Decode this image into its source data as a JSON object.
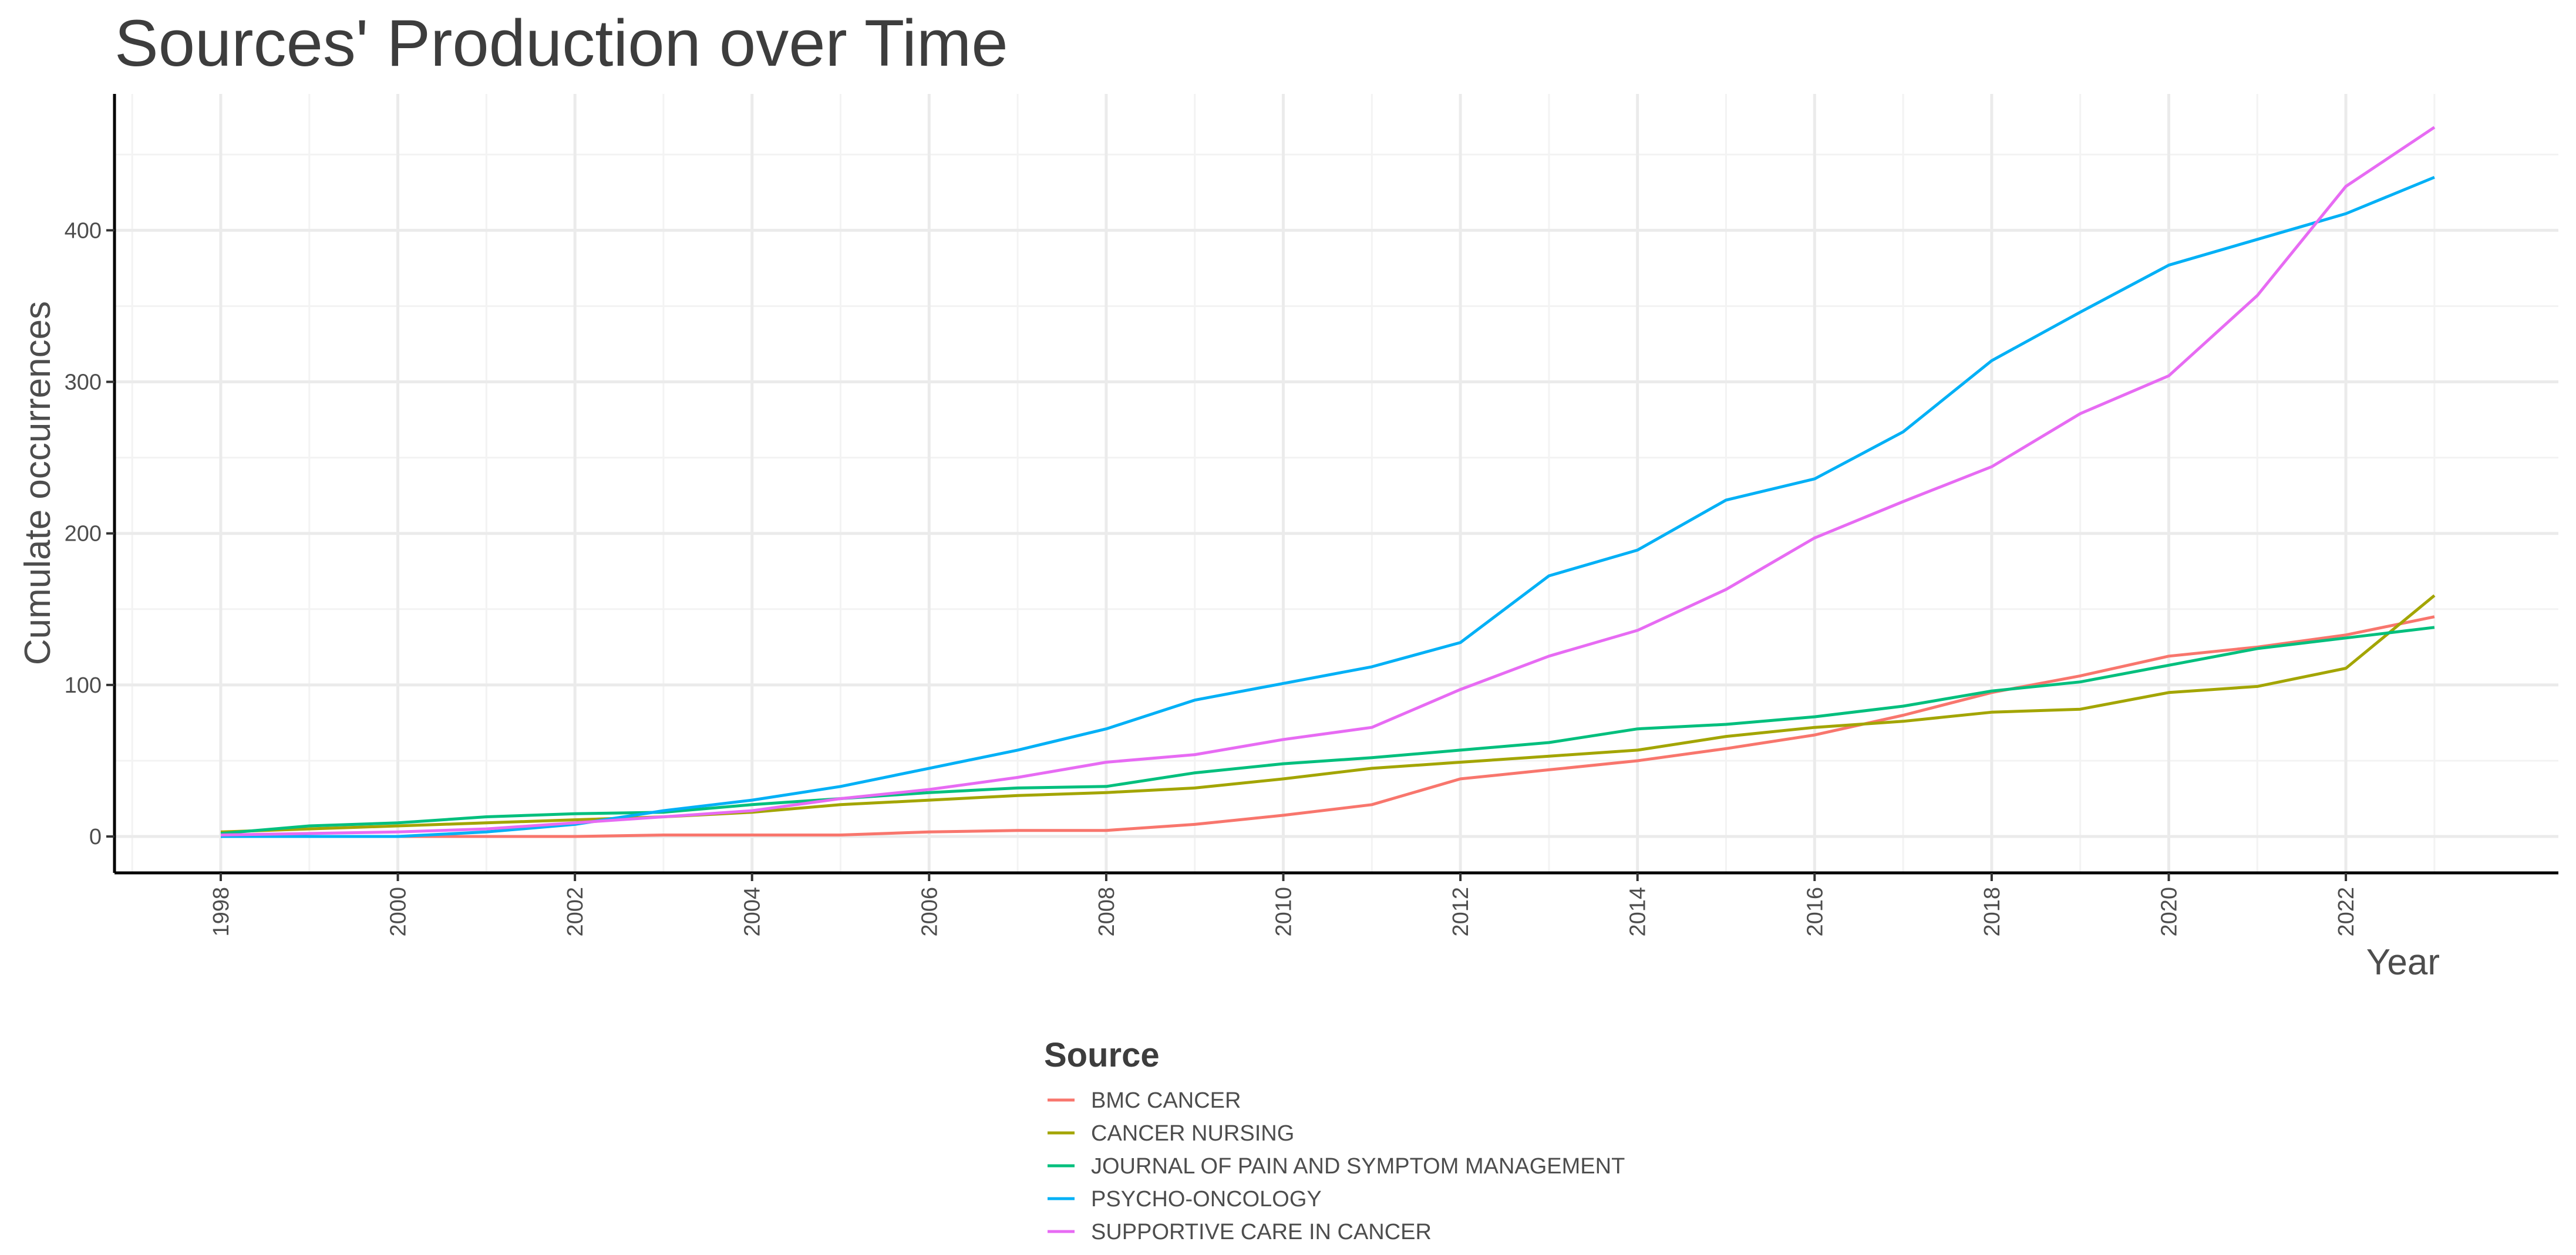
{
  "chart_data": {
    "type": "line",
    "title": "Sources' Production over Time",
    "xlabel": "Year",
    "ylabel": "Cumulate occurrences",
    "x": [
      1998,
      1999,
      2000,
      2001,
      2002,
      2003,
      2004,
      2005,
      2006,
      2007,
      2008,
      2009,
      2010,
      2011,
      2012,
      2013,
      2014,
      2015,
      2016,
      2017,
      2018,
      2019,
      2020,
      2021,
      2022,
      2023
    ],
    "xlim": [
      1996.8,
      2024.4
    ],
    "ylim": [
      -24,
      490
    ],
    "x_ticks": [
      "1998",
      "2000",
      "2002",
      "2004",
      "2006",
      "2008",
      "2010",
      "2012",
      "2014",
      "2016",
      "2018",
      "2020",
      "2022"
    ],
    "y_ticks": [
      "0",
      "100",
      "200",
      "300",
      "400"
    ],
    "grid": true,
    "legend_title": "Source",
    "legend_position": "bottom",
    "series": [
      {
        "name": "BMC CANCER",
        "color": "#F8766D",
        "values": [
          0,
          0,
          0,
          0,
          0,
          1,
          1,
          1,
          3,
          4,
          4,
          8,
          14,
          21,
          38,
          44,
          50,
          58,
          67,
          80,
          95,
          106,
          119,
          125,
          133,
          145
        ]
      },
      {
        "name": "CANCER NURSING",
        "color": "#A3A500",
        "values": [
          3,
          5,
          7,
          9,
          11,
          13,
          16,
          21,
          24,
          27,
          29,
          32,
          38,
          45,
          49,
          53,
          57,
          66,
          72,
          76,
          82,
          84,
          95,
          99,
          111,
          159
        ]
      },
      {
        "name": "JOURNAL OF PAIN AND SYMPTOM MANAGEMENT",
        "color": "#00BF7D",
        "values": [
          2,
          7,
          9,
          13,
          15,
          16,
          21,
          25,
          29,
          32,
          33,
          42,
          48,
          52,
          57,
          62,
          71,
          74,
          79,
          86,
          96,
          102,
          113,
          124,
          131,
          138
        ]
      },
      {
        "name": "PSYCHO-ONCOLOGY",
        "color": "#00B0F6",
        "values": [
          0,
          0,
          0,
          3,
          8,
          17,
          24,
          33,
          45,
          57,
          71,
          90,
          101,
          112,
          128,
          172,
          189,
          222,
          236,
          267,
          314,
          346,
          377,
          394,
          411,
          435
        ]
      },
      {
        "name": "SUPPORTIVE CARE IN CANCER",
        "color": "#E76BF3",
        "values": [
          1,
          2,
          3,
          5,
          9,
          13,
          17,
          25,
          31,
          39,
          49,
          54,
          64,
          72,
          97,
          119,
          136,
          163,
          197,
          221,
          244,
          279,
          304,
          357,
          429,
          468
        ]
      }
    ]
  }
}
